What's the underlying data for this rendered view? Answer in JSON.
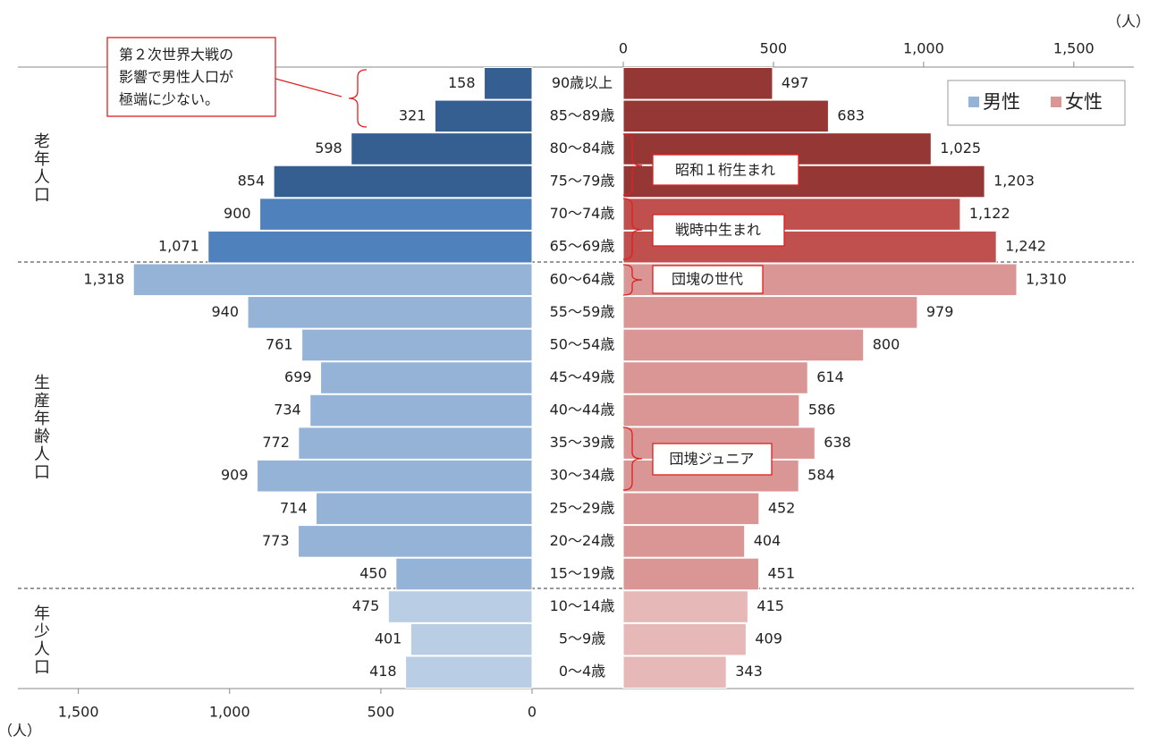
{
  "chart_data": {
    "type": "population_pyramid",
    "categories": [
      "90歳以上",
      "85〜89歳",
      "80〜84歳",
      "75〜79歳",
      "70〜74歳",
      "65〜69歳",
      "60〜64歳",
      "55〜59歳",
      "50〜54歳",
      "45〜49歳",
      "40〜44歳",
      "35〜39歳",
      "30〜34歳",
      "25〜29歳",
      "20〜24歳",
      "15〜19歳",
      "10〜14歳",
      "5〜9歳",
      "0〜4歳"
    ],
    "series": [
      {
        "name": "男性",
        "color": "#95b3d7",
        "colors": [
          "#355e91",
          "#355e91",
          "#355e91",
          "#355e91",
          "#4f81bd",
          "#4f81bd",
          "#95b3d7",
          "#95b3d7",
          "#95b3d7",
          "#95b3d7",
          "#95b3d7",
          "#95b3d7",
          "#95b3d7",
          "#95b3d7",
          "#95b3d7",
          "#95b3d7",
          "#b9cde5",
          "#b9cde5",
          "#b9cde5"
        ],
        "values": [
          158,
          321,
          598,
          854,
          900,
          1071,
          1318,
          940,
          761,
          699,
          734,
          772,
          909,
          714,
          773,
          450,
          475,
          401,
          418
        ],
        "value_labels": [
          "158",
          "321",
          "598",
          "854",
          "900",
          "1,071",
          "1,318",
          "940",
          "761",
          "699",
          "734",
          "772",
          "909",
          "714",
          "773",
          "450",
          "475",
          "401",
          "418"
        ],
        "xlim": [
          0,
          1700
        ],
        "xticks": [
          {
            "value": 1500,
            "label": "1,500"
          },
          {
            "value": 1000,
            "label": "1,000"
          },
          500,
          0
        ],
        "axis_unit": "（人）"
      },
      {
        "name": "女性",
        "color": "#da9694",
        "colors": [
          "#953735",
          "#953735",
          "#953735",
          "#953735",
          "#c0504d",
          "#c0504d",
          "#da9694",
          "#da9694",
          "#da9694",
          "#da9694",
          "#da9694",
          "#da9694",
          "#da9694",
          "#da9694",
          "#da9694",
          "#da9694",
          "#e6b9b8",
          "#e6b9b8",
          "#e6b9b8"
        ],
        "values": [
          497,
          683,
          1025,
          1203,
          1122,
          1242,
          1310,
          979,
          800,
          614,
          586,
          638,
          584,
          452,
          404,
          451,
          415,
          409,
          343
        ],
        "value_labels": [
          "497",
          "683",
          "1,025",
          "1,203",
          "1,122",
          "1,242",
          "1,310",
          "979",
          "800",
          "614",
          "586",
          "638",
          "584",
          "452",
          "404",
          "451",
          "415",
          "409",
          "343"
        ],
        "xlim": [
          0,
          1700
        ],
        "xticks": [
          0,
          500,
          {
            "value": 1000,
            "label": "1,000"
          },
          {
            "value": 1500,
            "label": "1,500"
          }
        ],
        "axis_unit": "（人）"
      }
    ],
    "groups": [
      "老年人口",
      "生産年齢人口",
      "年少人口"
    ],
    "annotations": {
      "war": [
        "第２次世界大戦の",
        "影響で男性人口が",
        "極端に少ない。"
      ],
      "showa": "昭和１桁生まれ",
      "wartime": "戦時中生まれ",
      "boomers": "団塊の世代",
      "junior": "団塊ジュニア"
    }
  }
}
